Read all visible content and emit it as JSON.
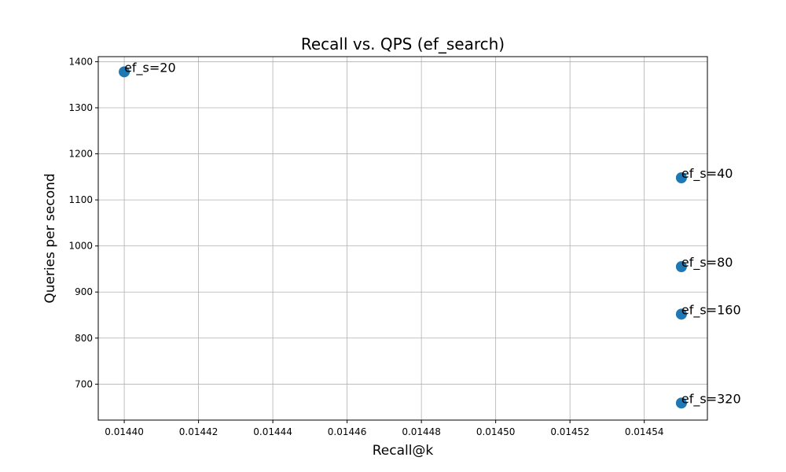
{
  "chart_data": {
    "type": "scatter",
    "title": "Recall vs. QPS (ef_search)",
    "xlabel": "Recall@k",
    "ylabel": "Queries per second",
    "xlim": [
      0.014393,
      0.014557
    ],
    "ylim": [
      622,
      1411
    ],
    "xticks": [
      0.0144,
      0.01442,
      0.01444,
      0.01446,
      0.01448,
      0.0145,
      0.01452,
      0.01454
    ],
    "xtick_labels": [
      "0.01440",
      "0.01442",
      "0.01444",
      "0.01446",
      "0.01448",
      "0.01450",
      "0.01452",
      "0.01454"
    ],
    "yticks": [
      700,
      800,
      900,
      1000,
      1100,
      1200,
      1300,
      1400
    ],
    "ytick_labels": [
      "700",
      "800",
      "900",
      "1000",
      "1100",
      "1200",
      "1300",
      "1400"
    ],
    "grid": true,
    "marker_color": "#1f77b4",
    "points": [
      {
        "x": 0.0144,
        "y": 1378,
        "label": "ef_s=20"
      },
      {
        "x": 0.01455,
        "y": 1148,
        "label": "ef_s=40"
      },
      {
        "x": 0.01455,
        "y": 955,
        "label": "ef_s=80"
      },
      {
        "x": 0.01455,
        "y": 852,
        "label": "ef_s=160"
      },
      {
        "x": 0.01455,
        "y": 659,
        "label": "ef_s=320"
      }
    ]
  }
}
